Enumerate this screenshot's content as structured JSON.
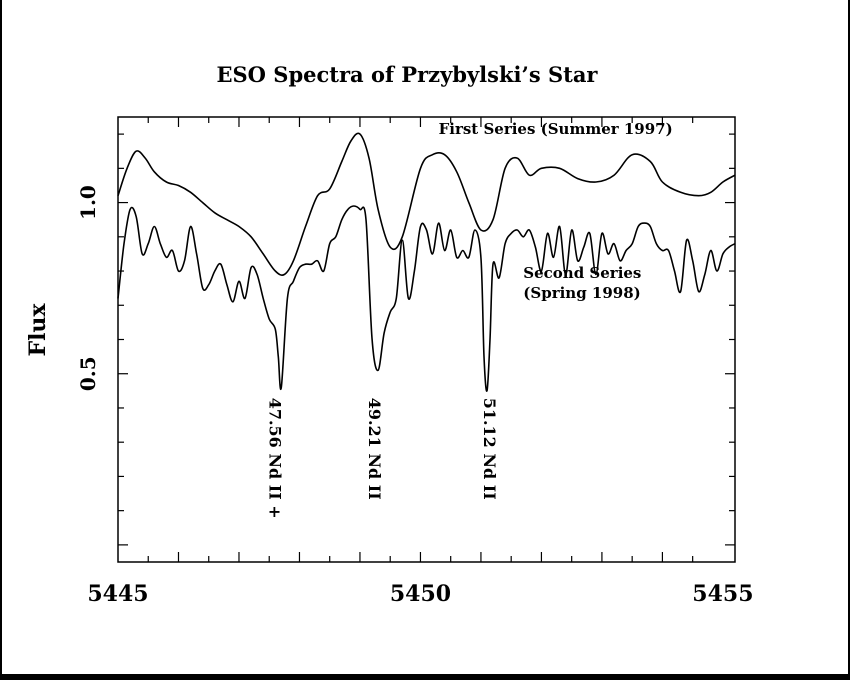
{
  "chart_data": {
    "type": "line",
    "title": "ESO  Spectra of Przybylski’s Star",
    "xlabel": "",
    "ylabel": "Flux",
    "xlim": [
      5445,
      5455.2
    ],
    "ylim": [
      -0.05,
      1.25
    ],
    "x_ticks": [
      5445,
      5450,
      5455
    ],
    "x_tick_labels": [
      "5445",
      "5450",
      "5455"
    ],
    "y_ticks": [
      0.5,
      1.0
    ],
    "y_tick_labels": [
      "0.5",
      "1.0"
    ],
    "grid": false,
    "series": [
      {
        "name": "First Series  (Summer 1997)",
        "x": [
          5445.0,
          5445.15,
          5445.3,
          5445.45,
          5445.6,
          5445.8,
          5446.0,
          5446.2,
          5446.4,
          5446.6,
          5446.8,
          5447.0,
          5447.2,
          5447.4,
          5447.6,
          5447.75,
          5447.9,
          5448.1,
          5448.3,
          5448.5,
          5448.7,
          5448.85,
          5449.0,
          5449.15,
          5449.3,
          5449.5,
          5449.7,
          5450.0,
          5450.2,
          5450.4,
          5450.6,
          5450.8,
          5451.0,
          5451.2,
          5451.4,
          5451.6,
          5451.8,
          5452.0,
          5452.3,
          5452.6,
          5452.9,
          5453.2,
          5453.5,
          5453.8,
          5454.0,
          5454.3,
          5454.6,
          5454.8,
          5455.0,
          5455.2
        ],
        "values": [
          1.02,
          1.1,
          1.15,
          1.13,
          1.09,
          1.06,
          1.05,
          1.03,
          1.0,
          0.97,
          0.95,
          0.93,
          0.9,
          0.85,
          0.8,
          0.79,
          0.83,
          0.93,
          1.02,
          1.04,
          1.12,
          1.18,
          1.2,
          1.13,
          0.98,
          0.87,
          0.9,
          1.1,
          1.14,
          1.14,
          1.09,
          1.0,
          0.92,
          0.95,
          1.1,
          1.13,
          1.08,
          1.1,
          1.1,
          1.07,
          1.06,
          1.08,
          1.14,
          1.12,
          1.06,
          1.03,
          1.02,
          1.03,
          1.06,
          1.08
        ]
      },
      {
        "name": "Second Series  (Spring 1998)",
        "x": [
          5445.0,
          5445.1,
          5445.2,
          5445.3,
          5445.4,
          5445.5,
          5445.6,
          5445.7,
          5445.8,
          5445.9,
          5446.0,
          5446.1,
          5446.2,
          5446.3,
          5446.4,
          5446.5,
          5446.6,
          5446.7,
          5446.8,
          5446.9,
          5447.0,
          5447.1,
          5447.2,
          5447.3,
          5447.4,
          5447.5,
          5447.6,
          5447.65,
          5447.7,
          5447.8,
          5447.9,
          5448.0,
          5448.1,
          5448.2,
          5448.3,
          5448.4,
          5448.5,
          5448.6,
          5448.7,
          5448.8,
          5448.9,
          5449.0,
          5449.1,
          5449.2,
          5449.3,
          5449.4,
          5449.5,
          5449.6,
          5449.7,
          5449.8,
          5449.9,
          5450.0,
          5450.1,
          5450.2,
          5450.3,
          5450.4,
          5450.5,
          5450.6,
          5450.7,
          5450.8,
          5450.9,
          5451.0,
          5451.05,
          5451.1,
          5451.15,
          5451.2,
          5451.3,
          5451.4,
          5451.5,
          5451.6,
          5451.7,
          5451.8,
          5451.9,
          5452.0,
          5452.1,
          5452.2,
          5452.3,
          5452.4,
          5452.5,
          5452.6,
          5452.7,
          5452.8,
          5452.9,
          5453.0,
          5453.1,
          5453.2,
          5453.3,
          5453.4,
          5453.5,
          5453.6,
          5453.7,
          5453.8,
          5453.9,
          5454.0,
          5454.1,
          5454.2,
          5454.3,
          5454.4,
          5454.5,
          5454.6,
          5454.7,
          5454.8,
          5454.9,
          5455.0,
          5455.1,
          5455.2
        ],
        "values": [
          0.72,
          0.88,
          0.98,
          0.96,
          0.85,
          0.88,
          0.93,
          0.88,
          0.84,
          0.86,
          0.8,
          0.83,
          0.93,
          0.85,
          0.75,
          0.76,
          0.8,
          0.82,
          0.76,
          0.71,
          0.77,
          0.72,
          0.81,
          0.79,
          0.72,
          0.66,
          0.63,
          0.55,
          0.46,
          0.72,
          0.77,
          0.81,
          0.82,
          0.82,
          0.83,
          0.8,
          0.88,
          0.9,
          0.95,
          0.98,
          0.99,
          0.98,
          0.95,
          0.6,
          0.51,
          0.62,
          0.68,
          0.72,
          0.89,
          0.72,
          0.8,
          0.93,
          0.92,
          0.85,
          0.94,
          0.86,
          0.92,
          0.84,
          0.86,
          0.84,
          0.92,
          0.84,
          0.55,
          0.45,
          0.6,
          0.82,
          0.78,
          0.88,
          0.91,
          0.92,
          0.9,
          0.92,
          0.87,
          0.8,
          0.91,
          0.84,
          0.93,
          0.79,
          0.92,
          0.83,
          0.87,
          0.91,
          0.79,
          0.91,
          0.85,
          0.88,
          0.83,
          0.86,
          0.88,
          0.93,
          0.94,
          0.93,
          0.88,
          0.86,
          0.86,
          0.8,
          0.74,
          0.89,
          0.83,
          0.74,
          0.79,
          0.86,
          0.8,
          0.85,
          0.87,
          0.88
        ]
      }
    ],
    "series_labels": [
      {
        "lines": [
          "First Series  (Summer 1997)"
        ],
        "anchor_x": 5450.3,
        "anchor_y": 1.2
      },
      {
        "lines": [
          "Second Series",
          "(Spring 1998)"
        ],
        "anchor_x": 5451.7,
        "anchor_y": 0.78
      }
    ],
    "annotations": [
      {
        "text": "47.56 Nd II +",
        "x": 5447.6,
        "y": 0.43
      },
      {
        "text": "49.21 Nd II",
        "x": 5449.25,
        "y": 0.43
      },
      {
        "text": "51.12 Nd II",
        "x": 5451.15,
        "y": 0.43
      }
    ]
  }
}
